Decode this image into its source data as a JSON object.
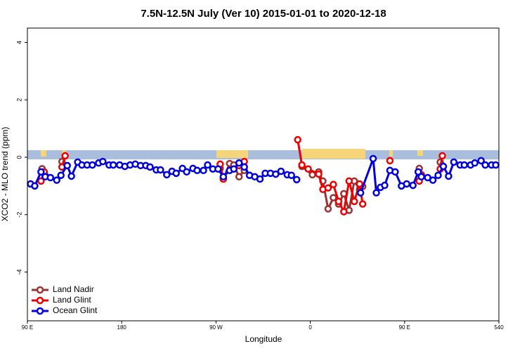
{
  "chart_data": {
    "type": "line",
    "title": "7.5N-12.5N July (Ver 10)   2015-01-01 to 2020-12-18",
    "xlabel": "Longitude",
    "ylabel": "XCO2 - MLO trend (ppm)",
    "xlim": [
      90,
      540
    ],
    "xticks": [
      {
        "value": 90,
        "label": "90 E"
      },
      180,
      {
        "value": 270,
        "label": "90 W"
      },
      {
        "value": 360,
        "label": "0"
      },
      {
        "value": 450,
        "label": "90 E"
      },
      540
    ],
    "ylim": [
      -5.7,
      4.5
    ],
    "yticks": [
      -4,
      -2,
      0,
      2,
      4
    ],
    "legend": "bottom-left",
    "series": [
      {
        "name": "Land Nadir",
        "color": "#993333",
        "x": [
          104,
          107,
          115,
          123,
          126,
          200,
          274,
          277,
          283,
          287,
          292,
          297,
          330,
          352,
          362,
          368,
          372,
          377,
          382,
          387,
          392,
          397,
          402,
          407,
          410,
          440,
          464,
          466,
          475,
          484,
          486
        ],
        "values": [
          -0.4,
          -0.63,
          null,
          -0.15,
          -0.3,
          null,
          -0.39,
          -0.76,
          -0.22,
          -0.27,
          -0.68,
          -0.46,
          null,
          -0.32,
          -0.61,
          -0.51,
          -0.83,
          -1.8,
          -1.41,
          -1.63,
          -1.27,
          -1.85,
          -0.83,
          -1.12,
          -1.02,
          null,
          -0.39,
          -0.63,
          null,
          -0.17,
          -0.3
        ]
      },
      {
        "name": "Land Glint",
        "color": "#ee0000",
        "x": [
          103,
          106,
          115,
          123,
          126,
          200,
          274,
          277,
          285,
          292,
          297,
          330,
          348,
          352,
          358,
          368,
          372,
          377,
          382,
          387,
          392,
          397,
          402,
          407,
          410,
          425,
          436,
          450,
          464,
          466,
          475,
          484,
          486
        ],
        "values": [
          -0.83,
          -0.51,
          null,
          -0.34,
          0.05,
          null,
          -0.24,
          -0.76,
          null,
          -0.29,
          -0.15,
          null,
          0.61,
          -0.27,
          -0.41,
          -0.59,
          -1.12,
          -1.07,
          -0.95,
          -1.54,
          -1.9,
          -0.83,
          -1.54,
          -0.93,
          -1.63,
          null,
          -0.12,
          null,
          -0.83,
          -0.61,
          null,
          -0.41,
          0.05
        ]
      },
      {
        "name": "Ocean Glint",
        "color": "#0000dd",
        "x": [
          93,
          97,
          103,
          107,
          112,
          118,
          122,
          128,
          132,
          138,
          142,
          147,
          152,
          158,
          162,
          168,
          172,
          178,
          183,
          188,
          193,
          198,
          203,
          207,
          213,
          217,
          223,
          228,
          232,
          238,
          242,
          248,
          252,
          258,
          262,
          267,
          272,
          277,
          283,
          287,
          292,
          297,
          302,
          307,
          312,
          317,
          322,
          327,
          332,
          338,
          342,
          347,
          380,
          408,
          420,
          423,
          427,
          431,
          436,
          441,
          447,
          452,
          458,
          463,
          466,
          472,
          477,
          482,
          487,
          492,
          497,
          503,
          507,
          513,
          517,
          523,
          527,
          533,
          537
        ],
        "values": [
          -0.93,
          -1.0,
          -0.51,
          -0.68,
          -0.71,
          -0.8,
          -0.63,
          -0.29,
          -0.66,
          -0.17,
          -0.27,
          -0.27,
          -0.27,
          -0.2,
          -0.15,
          -0.27,
          -0.27,
          -0.27,
          -0.32,
          -0.27,
          -0.24,
          -0.29,
          -0.29,
          -0.34,
          -0.44,
          -0.44,
          -0.61,
          -0.49,
          -0.56,
          -0.39,
          -0.51,
          -0.39,
          -0.46,
          -0.46,
          -0.27,
          -0.41,
          -0.41,
          -0.68,
          -0.46,
          -0.41,
          -0.2,
          -0.34,
          -0.63,
          -0.68,
          -0.76,
          -0.56,
          -0.56,
          -0.59,
          -0.49,
          -0.61,
          -0.63,
          -0.78,
          null,
          -1.24,
          -0.05,
          -1.24,
          -1.05,
          -0.98,
          -0.46,
          -0.51,
          -1.0,
          -0.93,
          -0.98,
          -0.51,
          -0.68,
          -0.71,
          -0.8,
          -0.63,
          -0.32,
          -0.66,
          -0.17,
          -0.27,
          -0.27,
          -0.27,
          -0.2,
          -0.12,
          -0.27,
          -0.27,
          -0.27
        ]
      }
    ]
  }
}
